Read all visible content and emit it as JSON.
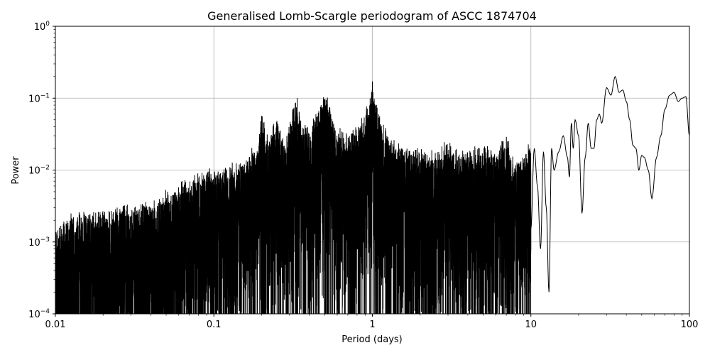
{
  "chart_data": {
    "type": "line",
    "title": "Generalised Lomb-Scargle periodogram of ASCC 1874704",
    "xlabel": "Period (days)",
    "ylabel": "Power",
    "xscale": "log",
    "yscale": "log",
    "xlim": [
      0.01,
      100
    ],
    "ylim": [
      0.0001,
      1
    ],
    "grid": true,
    "x_ticks": [
      {
        "value": 0.01,
        "label": "0.01"
      },
      {
        "value": 0.1,
        "label": "0.1"
      },
      {
        "value": 1,
        "label": "1"
      },
      {
        "value": 10,
        "label": "10"
      },
      {
        "value": 100,
        "label": "100"
      }
    ],
    "y_ticks": [
      {
        "value": 0.0001,
        "base": "10",
        "exp": "−4"
      },
      {
        "value": 0.001,
        "base": "10",
        "exp": "−3"
      },
      {
        "value": 0.01,
        "base": "10",
        "exp": "−2"
      },
      {
        "value": 0.1,
        "base": "10",
        "exp": "−1"
      },
      {
        "value": 1,
        "base": "10",
        "exp": "0"
      }
    ],
    "line_color": "#000000",
    "series": [
      {
        "envelope_upper": [
          [
            0.01,
            0.0017
          ],
          [
            0.012,
            0.0025
          ],
          [
            0.014,
            0.0028
          ],
          [
            0.016,
            0.0029
          ],
          [
            0.018,
            0.0028
          ],
          [
            0.02,
            0.0031
          ],
          [
            0.022,
            0.003
          ],
          [
            0.025,
            0.0033
          ],
          [
            0.028,
            0.0038
          ],
          [
            0.03,
            0.0035
          ],
          [
            0.035,
            0.004
          ],
          [
            0.04,
            0.0038
          ],
          [
            0.045,
            0.0045
          ],
          [
            0.05,
            0.0055
          ],
          [
            0.055,
            0.0058
          ],
          [
            0.06,
            0.0065
          ],
          [
            0.065,
            0.0085
          ],
          [
            0.07,
            0.008
          ],
          [
            0.075,
            0.0095
          ],
          [
            0.08,
            0.0105
          ],
          [
            0.09,
            0.011
          ],
          [
            0.1,
            0.0115
          ],
          [
            0.11,
            0.0135
          ],
          [
            0.12,
            0.012
          ],
          [
            0.13,
            0.014
          ],
          [
            0.14,
            0.016
          ],
          [
            0.15,
            0.015
          ],
          [
            0.17,
            0.02
          ],
          [
            0.19,
            0.023
          ],
          [
            0.2,
            0.07
          ],
          [
            0.22,
            0.03
          ],
          [
            0.25,
            0.06
          ],
          [
            0.28,
            0.025
          ],
          [
            0.3,
            0.05
          ],
          [
            0.33,
            0.13
          ],
          [
            0.36,
            0.05
          ],
          [
            0.4,
            0.04
          ],
          [
            0.45,
            0.08
          ],
          [
            0.5,
            0.16
          ],
          [
            0.55,
            0.07
          ],
          [
            0.6,
            0.04
          ],
          [
            0.7,
            0.035
          ],
          [
            0.8,
            0.05
          ],
          [
            0.9,
            0.07
          ],
          [
            1.0,
            0.19
          ],
          [
            1.1,
            0.06
          ],
          [
            1.3,
            0.03
          ],
          [
            1.5,
            0.025
          ],
          [
            1.8,
            0.022
          ],
          [
            2.0,
            0.02
          ],
          [
            2.5,
            0.02
          ],
          [
            3.0,
            0.028
          ],
          [
            3.5,
            0.018
          ],
          [
            4.0,
            0.02
          ],
          [
            5.0,
            0.025
          ],
          [
            6.0,
            0.022
          ],
          [
            7.0,
            0.035
          ],
          [
            8.0,
            0.015
          ],
          [
            10.0,
            0.025
          ]
        ],
        "smooth": [
          [
            10,
            0.0015
          ],
          [
            10.5,
            0.02
          ],
          [
            11,
            0.006
          ],
          [
            11.5,
            0.0008
          ],
          [
            12,
            0.018
          ],
          [
            12.5,
            0.003
          ],
          [
            13,
            0.0002
          ],
          [
            13.5,
            0.02
          ],
          [
            14,
            0.01
          ],
          [
            15,
            0.018
          ],
          [
            16,
            0.03
          ],
          [
            17,
            0.015
          ],
          [
            17.5,
            0.008
          ],
          [
            18,
            0.045
          ],
          [
            18.5,
            0.02
          ],
          [
            19,
            0.05
          ],
          [
            20,
            0.03
          ],
          [
            21,
            0.0025
          ],
          [
            22,
            0.015
          ],
          [
            23,
            0.045
          ],
          [
            24,
            0.02
          ],
          [
            25,
            0.02
          ],
          [
            26,
            0.05
          ],
          [
            27,
            0.06
          ],
          [
            28,
            0.045
          ],
          [
            30,
            0.14
          ],
          [
            32,
            0.11
          ],
          [
            34,
            0.2
          ],
          [
            36,
            0.12
          ],
          [
            38,
            0.13
          ],
          [
            40,
            0.09
          ],
          [
            42,
            0.05
          ],
          [
            44,
            0.022
          ],
          [
            46,
            0.02
          ],
          [
            48,
            0.01
          ],
          [
            50,
            0.016
          ],
          [
            52,
            0.015
          ],
          [
            55,
            0.01
          ],
          [
            58,
            0.004
          ],
          [
            62,
            0.015
          ],
          [
            66,
            0.03
          ],
          [
            70,
            0.07
          ],
          [
            75,
            0.11
          ],
          [
            80,
            0.12
          ],
          [
            85,
            0.09
          ],
          [
            90,
            0.1
          ],
          [
            95,
            0.105
          ],
          [
            100,
            0.03
          ]
        ]
      }
    ]
  }
}
